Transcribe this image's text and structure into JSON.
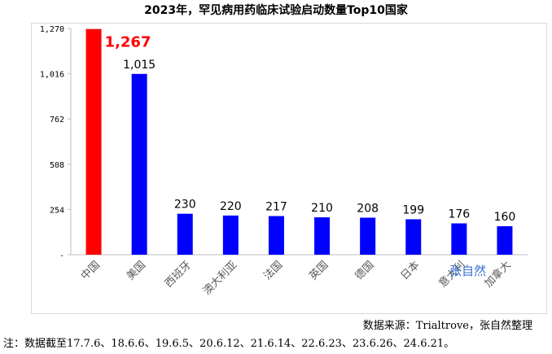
{
  "chart_data": {
    "type": "bar",
    "title": "2023年，罕见病用药临床试验启动数量Top10国家",
    "categories": [
      "中国",
      "美国",
      "西班牙",
      "澳大利亚",
      "法国",
      "英国",
      "德国",
      "日本",
      "意大利",
      "加拿大"
    ],
    "values": [
      1267,
      1015,
      230,
      220,
      217,
      210,
      208,
      199,
      176,
      160
    ],
    "value_labels": [
      "1,267",
      "1,015",
      "230",
      "220",
      "217",
      "210",
      "208",
      "199",
      "176",
      "160"
    ],
    "ytick_labels": [
      "-",
      "254",
      "508",
      "762",
      "1,016",
      "1,270"
    ],
    "ytick_values": [
      0,
      254,
      508,
      762,
      1016,
      1270
    ],
    "ylim": [
      0,
      1270
    ],
    "xlabel": "",
    "ylabel": "",
    "grid": false,
    "highlight_index": 0,
    "colors": {
      "highlight": "#ff0000",
      "bars": "#0000ff"
    }
  },
  "watermark": "张自然",
  "source": "数据来源：Trialtrove，张自然整理",
  "note": "注：数据截至17.7.6、18.6.6、19.6.5、20.6.12、21.6.14、22.6.23、23.6.26、24.6.21。"
}
